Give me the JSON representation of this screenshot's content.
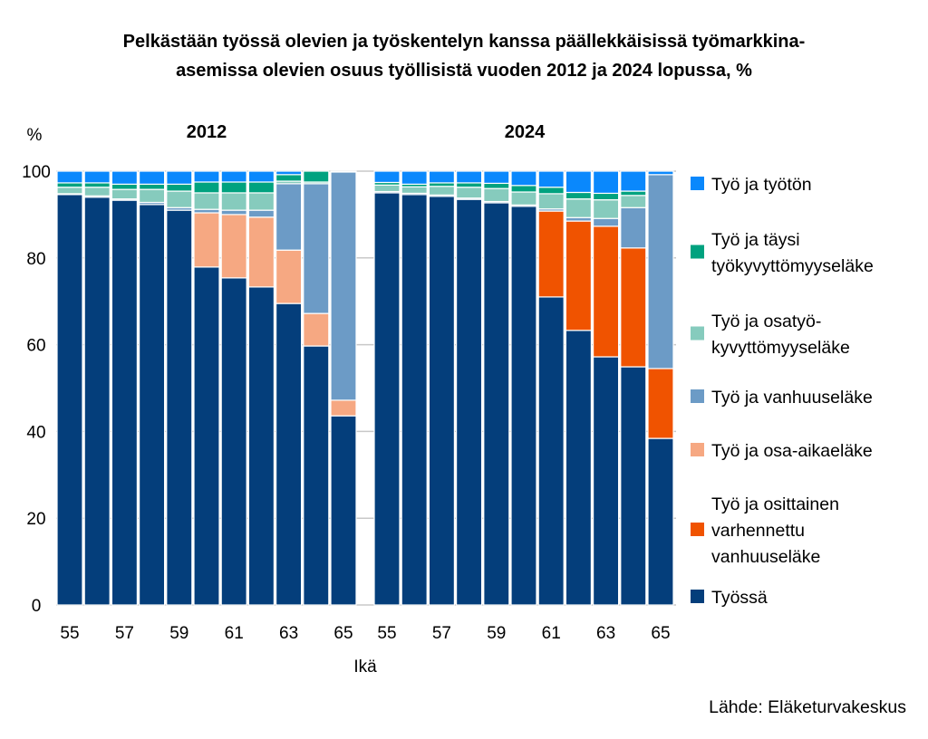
{
  "chart_data": {
    "type": "bar",
    "stacked": true,
    "title": [
      "Pelkästään työssä olevien ja työskentelyn kanssa päällekkäisissä työmarkkina-",
      "asemissa olevien osuus työllisistä vuoden 2012 ja 2024 lopussa, %"
    ],
    "ylabel": "%",
    "xlabel": "Ikä",
    "ylim": [
      0,
      100
    ],
    "yticks": [
      "0",
      "20",
      "40",
      "60",
      "80",
      "100"
    ],
    "xtick_labels": [
      "55",
      "57",
      "59",
      "61",
      "63",
      "65"
    ],
    "categories": [
      "55",
      "56",
      "57",
      "58",
      "59",
      "60",
      "61",
      "62",
      "63",
      "64",
      "65"
    ],
    "grid": true,
    "legend_position": "right",
    "source": "Lähde: Eläketurvakeskus",
    "series_order": [
      "tyossa",
      "osittainen",
      "osa_aika",
      "vanhuus",
      "osatyo",
      "taysi",
      "tyoton"
    ],
    "series_info": {
      "tyoton": {
        "name": "Työ ja työtön",
        "lines": [
          "Työ ja työtön"
        ],
        "color": "#0a88fc"
      },
      "taysi": {
        "name": "Työ ja täysi työkyvyttömyyseläke",
        "lines": [
          "Työ ja täysi",
          "työkyvyttömyyseläke"
        ],
        "color": "#00a27f"
      },
      "osatyo": {
        "name": "Työ ja osatyökyvyttömyyseläke",
        "lines": [
          "Työ ja osatyö-",
          "kyvyttömyyseläke"
        ],
        "color": "#86cbbd"
      },
      "vanhuus": {
        "name": "Työ ja vanhuuseläke",
        "lines": [
          "Työ ja vanhuuseläke"
        ],
        "color": "#6c9bc6"
      },
      "osa_aika": {
        "name": "Työ ja osa-aikaeläke",
        "lines": [
          "Työ ja osa-aikaeläke"
        ],
        "color": "#f6a882"
      },
      "osittainen": {
        "name": "Työ ja osittainen varhennettu vanhuuseläke",
        "lines": [
          "Työ ja osittainen",
          "varhennettu",
          "vanhuuseläke"
        ],
        "color": "#f05300"
      },
      "tyossa": {
        "name": "Työssä",
        "lines": [
          "Työssä"
        ],
        "color": "#043e7b"
      }
    },
    "groups": [
      {
        "label": "2012",
        "series": {
          "tyossa": [
            94.6,
            94.0,
            93.3,
            92.3,
            91.0,
            77.9,
            75.4,
            73.3,
            69.5,
            59.7,
            43.6
          ],
          "osittainen": [
            0,
            0,
            0,
            0,
            0,
            0,
            0,
            0,
            0,
            0,
            0
          ],
          "osa_aika": [
            0,
            0,
            0,
            0,
            0,
            12.5,
            14.6,
            16.1,
            12.3,
            7.5,
            3.6
          ],
          "vanhuus": [
            0.2,
            0.3,
            0.3,
            0.5,
            0.6,
            0.8,
            1.0,
            1.6,
            15.3,
            29.9,
            52.6
          ],
          "osatyo": [
            1.5,
            2.0,
            2.2,
            3.0,
            3.8,
            3.8,
            4.0,
            4.0,
            0.6,
            0.4,
            0
          ],
          "taysi": [
            1.0,
            1.0,
            1.2,
            1.2,
            1.6,
            2.5,
            2.5,
            2.5,
            1.5,
            2.5,
            0
          ],
          "tyoton": [
            2.7,
            2.7,
            3.0,
            3.0,
            3.0,
            2.5,
            2.5,
            2.5,
            0.8,
            0,
            0.2
          ]
        }
      },
      {
        "label": "2024",
        "series": {
          "tyossa": [
            95.0,
            94.6,
            94.2,
            93.5,
            92.7,
            91.9,
            71.0,
            63.3,
            57.2,
            54.9,
            38.4
          ],
          "osittainen": [
            0,
            0,
            0,
            0,
            0,
            0,
            19.8,
            25.2,
            30.1,
            27.4,
            16.1
          ],
          "osa_aika": [
            0,
            0,
            0,
            0,
            0,
            0,
            0,
            0,
            0,
            0,
            0
          ],
          "vanhuus": [
            0.3,
            0.3,
            0.3,
            0.3,
            0.3,
            0.3,
            0.5,
            0.8,
            1.8,
            9.3,
            44.7
          ],
          "osatyo": [
            1.5,
            1.5,
            2.0,
            2.5,
            3.0,
            3.0,
            3.5,
            4.3,
            4.3,
            2.8,
            0
          ],
          "taysi": [
            0.6,
            0.6,
            0.8,
            1.0,
            1.2,
            1.5,
            1.5,
            1.5,
            1.5,
            1.0,
            0
          ],
          "tyoton": [
            2.6,
            3.0,
            2.7,
            2.7,
            2.8,
            3.3,
            3.7,
            4.9,
            5.1,
            4.6,
            0.8
          ]
        }
      }
    ]
  }
}
